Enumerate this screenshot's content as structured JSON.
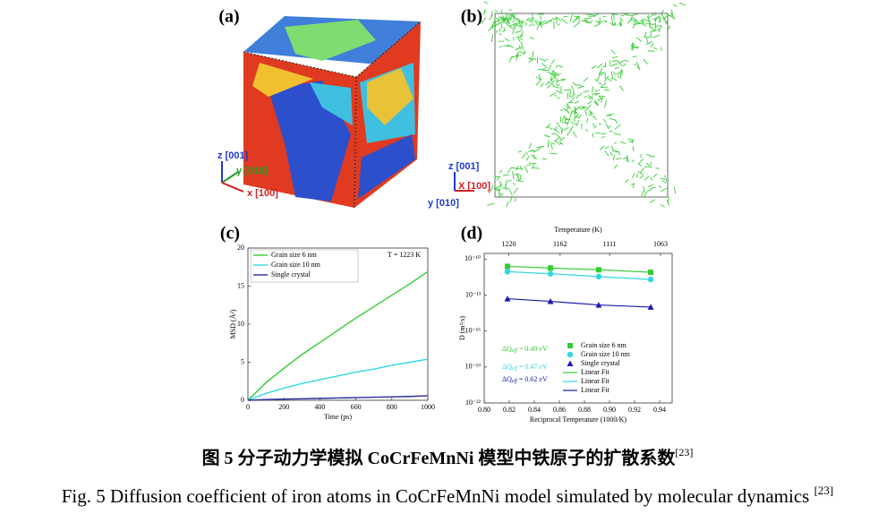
{
  "panel_a": {
    "label": "(a)",
    "axis_z": "z [001]",
    "axis_y": "y [010]",
    "axis_x": "x [100]"
  },
  "panel_b": {
    "label": "(b)",
    "axis_z": "z [001]",
    "axis_x": "X [100]",
    "axis_y": "y [010]"
  },
  "chart_data": [
    {
      "type": "line",
      "panel": "(c)",
      "xlabel": "Time (ps)",
      "ylabel": "MSD (Å²)",
      "annotation": "T = 1223 K",
      "legend": "upper left",
      "x": [
        0,
        100,
        200,
        300,
        400,
        500,
        600,
        700,
        800,
        900,
        1000
      ],
      "series": [
        {
          "name": "Grain size 6 nm",
          "color": "#33cc33",
          "values": [
            0,
            2.3,
            4.2,
            6.0,
            7.6,
            9.2,
            10.8,
            12.3,
            13.8,
            15.3,
            16.9
          ]
        },
        {
          "name": "Grain size 10 nm",
          "color": "#33d6e0",
          "values": [
            0,
            0.9,
            1.6,
            2.2,
            2.7,
            3.2,
            3.7,
            4.1,
            4.6,
            5.0,
            5.4
          ]
        },
        {
          "name": "Single crystal",
          "color": "#2a2a9e",
          "values": [
            0,
            0.1,
            0.15,
            0.2,
            0.25,
            0.3,
            0.35,
            0.4,
            0.45,
            0.5,
            0.6
          ]
        }
      ],
      "xlim": [
        0,
        1000
      ],
      "ylim": [
        0,
        20
      ],
      "xticks": [
        0,
        200,
        400,
        600,
        800,
        1000
      ],
      "yticks": [
        0,
        5,
        10,
        15,
        20
      ]
    },
    {
      "type": "scatter",
      "panel": "(d)",
      "xlabel": "Reciprocal Temperature (1000/K)",
      "ylabel": "D (m²/s)",
      "x2label": "Temperature (K)",
      "log_y": true,
      "legend": "lower right",
      "x": [
        0.8186,
        0.8529,
        0.8914,
        0.9329
      ],
      "series": [
        {
          "name": "Grain size 6 nm",
          "color": "#33cc33",
          "marker": "square",
          "fit": "Linear Fit",
          "annotation": {
            "symbol": "ΔQ",
            "subscript": "eff",
            "text": " = 0.49 eV"
          },
          "values": [
            2.5e-11,
            1.8e-11,
            1.3e-11,
            8e-12
          ]
        },
        {
          "name": "Grain size 10 nm",
          "color": "#33d6e0",
          "marker": "circle",
          "fit": "Linear Fit",
          "annotation": {
            "symbol": "ΔQ",
            "subscript": "eff",
            "text": " = 0.47 eV"
          },
          "values": [
            9e-12,
            6e-12,
            3.5e-12,
            2e-12
          ]
        },
        {
          "name": "Single crystal",
          "color": "#1a1aa8",
          "marker": "triangle",
          "fit": "Linear Fit",
          "annotation": {
            "symbol": "ΔQ",
            "subscript": "eff",
            "text": " = 0.62 eV"
          },
          "values": [
            5e-14,
            3e-14,
            1.5e-14,
            1e-14
          ]
        }
      ],
      "xlim": [
        0.8,
        0.95
      ],
      "ylim": [
        1e-22,
        3e-10
      ],
      "xticks": [
        {
          "value": 0.8,
          "label": "0.80"
        },
        0.82,
        0.84,
        0.86,
        0.88,
        {
          "value": 0.9,
          "label": "0.90"
        },
        0.92,
        0.94
      ],
      "x2ticks": [
        1220,
        1162,
        1111,
        1063
      ],
      "yticks": [
        {
          "value": 1e-10,
          "label": "10⁻¹⁰"
        },
        {
          "value": 1e-13,
          "label": "10⁻¹³"
        },
        {
          "value": 1e-16,
          "label": "10⁻¹⁶"
        },
        {
          "value": 1e-19,
          "label": "10⁻¹⁹"
        },
        {
          "value": 1e-22,
          "label": "10⁻²²"
        }
      ]
    }
  ],
  "caption": {
    "zh": "图 5  分子动力学模拟 CoCrFeMnNi 模型中铁原子的扩散系数",
    "zh_ref": "[23]",
    "en": "Fig. 5 Diffusion coefficient of iron atoms in CoCrFeMnNi model simulated by molecular dynamics ",
    "en_ref": "[23]"
  }
}
